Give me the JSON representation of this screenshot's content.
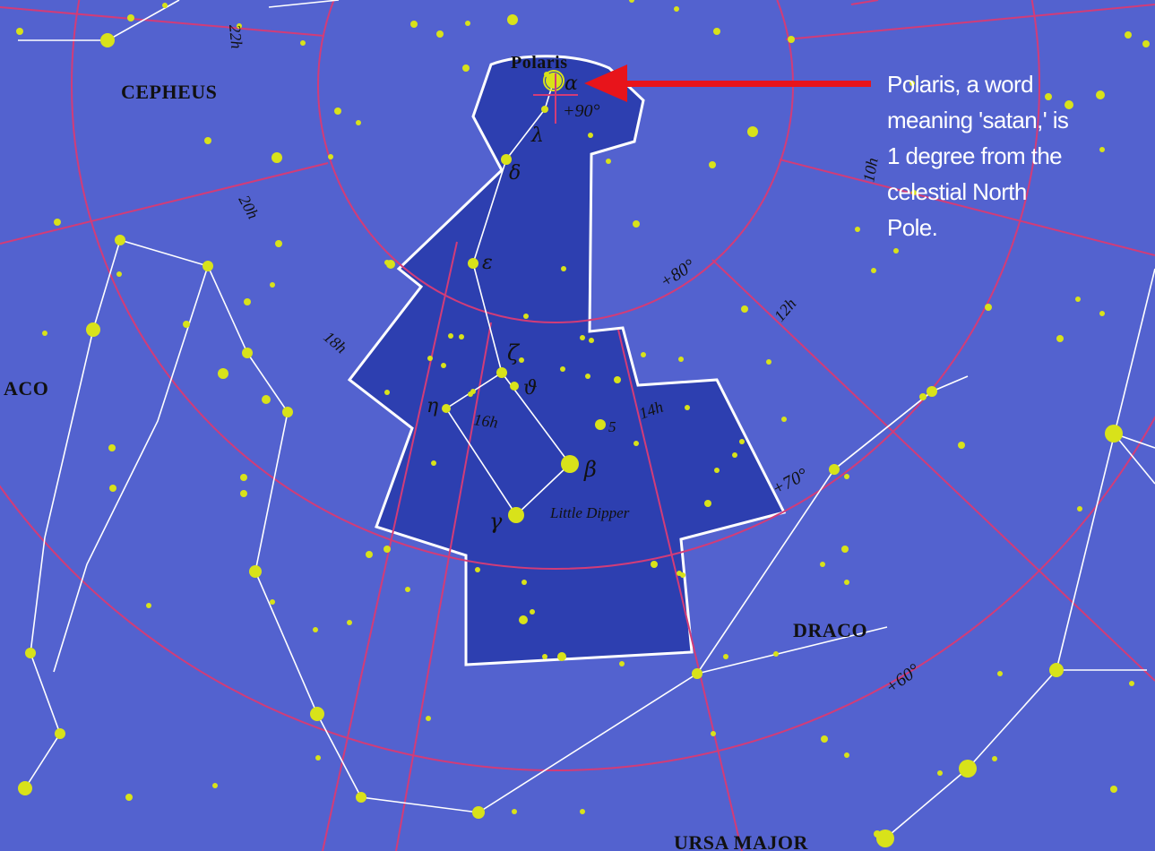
{
  "map": {
    "background_color": "#5362cf",
    "highlight_color": "#2d3fb0",
    "grid_color": "#d23c78",
    "star_color": "#d8e21a",
    "line_color": "#ffffff"
  },
  "constellations": {
    "cepheus": "CEPHEUS",
    "draco_left": "ACO",
    "draco": "DRACO",
    "ursa_major": "URSA MAJOR",
    "little_dipper": "Little Dipper"
  },
  "stars": {
    "polaris": "Polaris",
    "alpha": "α",
    "beta": "β",
    "gamma": "γ",
    "delta": "δ",
    "epsilon": "ε",
    "zeta": "ζ",
    "eta": "η",
    "theta": "ϑ",
    "lambda": "λ",
    "five": "5"
  },
  "coordinates": {
    "dec_90": "+90°",
    "dec_80": "+80°",
    "dec_70": "+70°",
    "dec_60": "+60°",
    "ra_10": "10h",
    "ra_12": "12h",
    "ra_14": "14h",
    "ra_16": "16h",
    "ra_18": "18h",
    "ra_20": "20h",
    "ra_22": "22h"
  },
  "annotation": {
    "lines": [
      "Polaris, a word",
      "meaning 'satan,' is",
      "1 degree from the",
      "celestial North",
      "Pole."
    ],
    "arrow_color": "#e8141b"
  }
}
